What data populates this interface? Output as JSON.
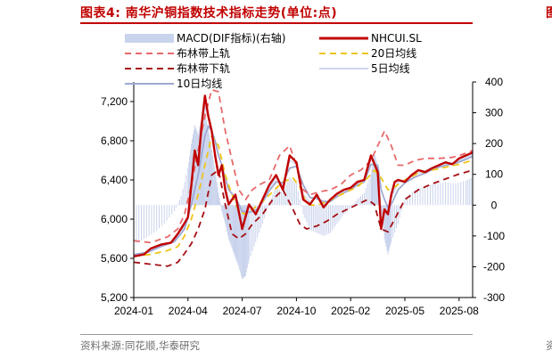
{
  "page": {
    "title": "图表4: 南华沪铜指数技术指标走势(单位:点)",
    "corner_char": "图",
    "source": "资料来源:同花顺,华泰研究",
    "corner_foot": "资"
  },
  "chart_data": {
    "type": "line",
    "title": "南华沪铜指数技术指标走势(单位:点)",
    "x_tick_labels": [
      "2024-01",
      "2024-04",
      "2024-07",
      "2024-10",
      "2025-02",
      "2025-05",
      "2025-08"
    ],
    "x_range": [
      0,
      100
    ],
    "x_tick_positions": [
      0,
      16,
      32,
      48,
      64,
      80,
      96
    ],
    "y_left": {
      "range": [
        5200,
        7400
      ],
      "ticks": [
        5200,
        5600,
        6000,
        6400,
        6800,
        7200
      ],
      "tick_labels": [
        "5,200",
        "5,600",
        "6,000",
        "6,400",
        "6,800",
        "7,200"
      ]
    },
    "y_right": {
      "range": [
        -300,
        400
      ],
      "ticks": [
        -300,
        -200,
        -100,
        0,
        100,
        200,
        300,
        400
      ],
      "tick_labels": [
        "-300",
        "-200",
        "-100",
        "0",
        "100",
        "200",
        "300",
        "400"
      ]
    },
    "legend": [
      {
        "key": "macd",
        "label": "MACD(DIF指标)(右轴)",
        "color": "#c9d3ec",
        "style": "bar"
      },
      {
        "key": "close",
        "label": "NHCUI.SL",
        "color": "#c00000",
        "style": "solid"
      },
      {
        "key": "boll_up",
        "label": "布林带上轨",
        "color": "#e8696b",
        "style": "dashed"
      },
      {
        "key": "ma20",
        "label": "20日均线",
        "color": "#f0c419",
        "style": "dashed"
      },
      {
        "key": "boll_low",
        "label": "布林带下轨",
        "color": "#a50f15",
        "style": "dashed"
      },
      {
        "key": "ma5",
        "label": "5日均线",
        "color": "#cdd6ee",
        "style": "solid"
      },
      {
        "key": "ma10",
        "label": "10日均线",
        "color": "#9fa9d3",
        "style": "solid"
      }
    ],
    "series": [
      {
        "name": "NHCUI.SL",
        "key": "close",
        "x": [
          0,
          3,
          5,
          8,
          11,
          13,
          15,
          16,
          17,
          18,
          19,
          20,
          21,
          22,
          23,
          24,
          25,
          26,
          27,
          28,
          30,
          32,
          34,
          36,
          38,
          40,
          42,
          44,
          46,
          48,
          50,
          52,
          54,
          56,
          58,
          60,
          62,
          64,
          66,
          68,
          70,
          72,
          73,
          74,
          75,
          76,
          77,
          78,
          80,
          82,
          84,
          86,
          88,
          90,
          92,
          94,
          96,
          98,
          100
        ],
        "y": [
          5620,
          5640,
          5700,
          5740,
          5760,
          5850,
          5960,
          6020,
          6350,
          6700,
          6550,
          6950,
          7260,
          7050,
          6900,
          6650,
          6450,
          6550,
          6300,
          6150,
          6250,
          5900,
          6150,
          6050,
          6200,
          6350,
          6450,
          6300,
          6650,
          6580,
          6200,
          6150,
          6250,
          6120,
          6200,
          6260,
          6300,
          6320,
          6380,
          6400,
          6650,
          6480,
          5900,
          6100,
          6050,
          6250,
          6380,
          6400,
          6380,
          6450,
          6500,
          6480,
          6520,
          6550,
          6580,
          6560,
          6620,
          6650,
          6680
        ]
      },
      {
        "name": "布林带上轨",
        "key": "boll_up",
        "x": [
          0,
          5,
          10,
          13,
          15,
          17,
          19,
          21,
          23,
          25,
          27,
          29,
          31,
          33,
          35,
          37,
          40,
          43,
          46,
          48,
          50,
          52,
          55,
          58,
          61,
          64,
          67,
          70,
          72,
          74,
          76,
          78,
          80,
          83,
          86,
          90,
          94,
          97,
          100
        ],
        "y": [
          5780,
          5760,
          5820,
          5900,
          6050,
          6350,
          6700,
          7050,
          7320,
          7300,
          6900,
          6600,
          6300,
          6200,
          6300,
          6350,
          6400,
          6650,
          6750,
          6550,
          6300,
          6250,
          6280,
          6300,
          6350,
          6450,
          6500,
          6600,
          6750,
          6900,
          6750,
          6550,
          6550,
          6600,
          6620,
          6620,
          6630,
          6660,
          6700
        ]
      },
      {
        "name": "20日均线",
        "key": "ma20",
        "x": [
          0,
          5,
          10,
          13,
          15,
          17,
          19,
          21,
          23,
          25,
          27,
          29,
          31,
          33,
          35,
          38,
          41,
          44,
          47,
          49,
          51,
          54,
          57,
          60,
          63,
          66,
          69,
          71,
          73,
          75,
          77,
          80,
          84,
          88,
          92,
          96,
          100
        ],
        "y": [
          5620,
          5640,
          5680,
          5720,
          5830,
          6000,
          6250,
          6550,
          6850,
          6750,
          6450,
          6250,
          6080,
          6050,
          6100,
          6180,
          6280,
          6380,
          6420,
          6330,
          6150,
          6140,
          6180,
          6230,
          6280,
          6330,
          6420,
          6500,
          6420,
          6300,
          6330,
          6400,
          6470,
          6500,
          6530,
          6560,
          6600
        ]
      },
      {
        "name": "布林带下轨",
        "key": "boll_low",
        "x": [
          0,
          5,
          10,
          13,
          15,
          17,
          19,
          21,
          23,
          25,
          27,
          29,
          31,
          33,
          35,
          38,
          41,
          44,
          47,
          49,
          51,
          54,
          57,
          60,
          63,
          66,
          69,
          71,
          73,
          75,
          77,
          80,
          84,
          88,
          92,
          96,
          100
        ],
        "y": [
          5560,
          5540,
          5520,
          5560,
          5650,
          5750,
          5900,
          6100,
          6450,
          6500,
          6150,
          5850,
          5800,
          5850,
          5950,
          6050,
          6200,
          6300,
          6100,
          5950,
          5900,
          5930,
          5980,
          6050,
          6100,
          6150,
          6200,
          6150,
          5900,
          5870,
          6000,
          6200,
          6300,
          6360,
          6410,
          6460,
          6500
        ]
      },
      {
        "name": "5日均线",
        "key": "ma5",
        "x": [
          0,
          3,
          6,
          9,
          12,
          14,
          16,
          18,
          19,
          20,
          21,
          22,
          23,
          24,
          25,
          26,
          27,
          28,
          30,
          32,
          34,
          36,
          38,
          40,
          42,
          44,
          46,
          48,
          50,
          52,
          54,
          56,
          58,
          60,
          62,
          64,
          66,
          68,
          70,
          72,
          73,
          74,
          75,
          76,
          78,
          80,
          83,
          86,
          89,
          92,
          95,
          98,
          100
        ],
        "y": [
          5630,
          5650,
          5700,
          5740,
          5780,
          5860,
          6000,
          6450,
          6600,
          6900,
          7150,
          7050,
          6880,
          6680,
          6500,
          6520,
          6330,
          6200,
          6200,
          5980,
          6100,
          6080,
          6180,
          6320,
          6420,
          6340,
          6600,
          6560,
          6250,
          6170,
          6230,
          6150,
          6190,
          6250,
          6290,
          6320,
          6370,
          6400,
          6620,
          6500,
          6050,
          6080,
          6070,
          6220,
          6380,
          6390,
          6460,
          6490,
          6540,
          6570,
          6580,
          6630,
          6660
        ]
      },
      {
        "name": "10日均线",
        "key": "ma10",
        "x": [
          0,
          4,
          8,
          12,
          15,
          17,
          19,
          21,
          22,
          23,
          24,
          25,
          26,
          27,
          28,
          30,
          32,
          34,
          36,
          38,
          40,
          42,
          44,
          46,
          48,
          50,
          52,
          54,
          56,
          58,
          60,
          62,
          64,
          66,
          68,
          70,
          72,
          73,
          74,
          75,
          76,
          78,
          80,
          83,
          86,
          89,
          92,
          95,
          98,
          100
        ],
        "y": [
          5640,
          5660,
          5720,
          5770,
          5900,
          6150,
          6450,
          6850,
          6950,
          6900,
          6800,
          6650,
          6550,
          6420,
          6300,
          6220,
          6080,
          6070,
          6090,
          6170,
          6290,
          6380,
          6370,
          6520,
          6540,
          6350,
          6220,
          6210,
          6180,
          6180,
          6230,
          6270,
          6300,
          6350,
          6380,
          6560,
          6550,
          6300,
          6200,
          6120,
          6150,
          6300,
          6370,
          6430,
          6470,
          6520,
          6550,
          6570,
          6610,
          6640
        ]
      },
      {
        "name": "MACD(DIF指标)",
        "key": "macd",
        "axis": "right",
        "x": [
          0,
          3,
          6,
          9,
          12,
          14,
          16,
          17,
          18,
          19,
          20,
          21,
          22,
          23,
          24,
          25,
          26,
          27,
          28,
          29,
          30,
          31,
          32,
          33,
          34,
          36,
          38,
          40,
          42,
          44,
          46,
          48,
          50,
          52,
          54,
          56,
          58,
          60,
          62,
          64,
          66,
          68,
          70,
          71,
          72,
          73,
          74,
          75,
          76,
          78,
          80,
          83,
          86,
          89,
          92,
          95,
          98,
          100
        ],
        "y": [
          -130,
          -110,
          -90,
          -60,
          -20,
          30,
          120,
          200,
          260,
          230,
          280,
          300,
          250,
          180,
          110,
          40,
          -20,
          -60,
          -110,
          -140,
          -170,
          -200,
          -240,
          -230,
          -180,
          -120,
          -60,
          10,
          60,
          40,
          90,
          70,
          -30,
          -80,
          -90,
          -100,
          -90,
          -60,
          -30,
          -10,
          20,
          40,
          100,
          170,
          130,
          -20,
          -110,
          -160,
          -120,
          -60,
          20,
          50,
          60,
          70,
          75,
          70,
          80,
          90
        ]
      }
    ]
  }
}
